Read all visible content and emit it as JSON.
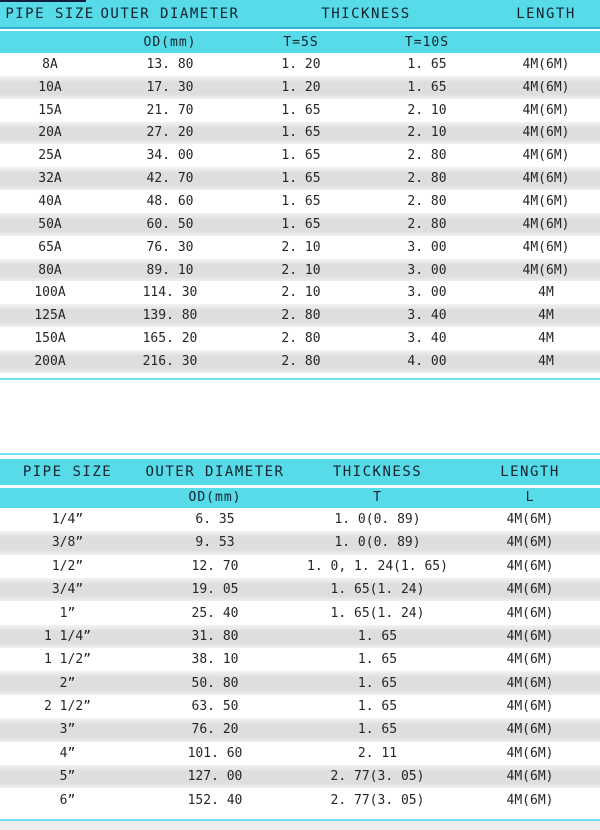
{
  "colors": {
    "header_cyan": "#57dbe9",
    "header_divider_teal": "#2cb6d4",
    "row_alt_gray": "#dedede",
    "thin_line_cyan": "#6fe0ef",
    "top_corner_navy": "#0d1c3f",
    "bottom_strip_gray": "#ededed",
    "text_dark": "#1d2a33"
  },
  "table1": {
    "header": {
      "pipe_size": "PIPE SIZE",
      "outer_diameter": "OUTER DIAMETER",
      "thickness": "THICKNESS",
      "length": "LENGTH"
    },
    "subheader": {
      "od": "OD(mm)",
      "t5s": "T=5S",
      "t10s": "T=10S"
    },
    "rows": [
      [
        "8A",
        "13. 80",
        "1. 20",
        "1. 65",
        "4M(6M)"
      ],
      [
        "10A",
        "17. 30",
        "1. 20",
        "1. 65",
        "4M(6M)"
      ],
      [
        "15A",
        "21. 70",
        "1. 65",
        "2. 10",
        "4M(6M)"
      ],
      [
        "20A",
        "27. 20",
        "1. 65",
        "2. 10",
        "4M(6M)"
      ],
      [
        "25A",
        "34. 00",
        "1. 65",
        "2. 80",
        "4M(6M)"
      ],
      [
        "32A",
        "42. 70",
        "1. 65",
        "2. 80",
        "4M(6M)"
      ],
      [
        "40A",
        "48. 60",
        "1. 65",
        "2. 80",
        "4M(6M)"
      ],
      [
        "50A",
        "60. 50",
        "1. 65",
        "2. 80",
        "4M(6M)"
      ],
      [
        "65A",
        "76. 30",
        "2. 10",
        "3. 00",
        "4M(6M)"
      ],
      [
        "80A",
        "89. 10",
        "2. 10",
        "3. 00",
        "4M(6M)"
      ],
      [
        "100A",
        "114. 30",
        "2. 10",
        "3. 00",
        "4M"
      ],
      [
        "125A",
        "139. 80",
        "2. 80",
        "3. 40",
        "4M"
      ],
      [
        "150A",
        "165. 20",
        "2. 80",
        "3. 40",
        "4M"
      ],
      [
        "200A",
        "216. 30",
        "2. 80",
        "4. 00",
        "4M"
      ]
    ]
  },
  "table2": {
    "header": {
      "pipe_size": "PIPE SIZE",
      "outer_diameter": "OUTER DIAMETER",
      "thickness": "THICKNESS",
      "length": "LENGTH"
    },
    "subheader": {
      "od": "OD(mm)",
      "t": "T",
      "l": "L"
    },
    "rows": [
      [
        "1/4”",
        "6. 35",
        "1. 0(0. 89)",
        "4M(6M)"
      ],
      [
        "3/8”",
        "9. 53",
        "1. 0(0. 89)",
        "4M(6M)"
      ],
      [
        "1/2”",
        "12. 70",
        "1. 0, 1. 24(1. 65)",
        "4M(6M)"
      ],
      [
        "3/4”",
        "19. 05",
        "1. 65(1. 24)",
        "4M(6M)"
      ],
      [
        "1”",
        "25. 40",
        "1. 65(1. 24)",
        "4M(6M)"
      ],
      [
        "1 1/4”",
        "31. 80",
        "1. 65",
        "4M(6M)"
      ],
      [
        "1 1/2”",
        "38. 10",
        "1. 65",
        "4M(6M)"
      ],
      [
        "2”",
        "50. 80",
        "1. 65",
        "4M(6M)"
      ],
      [
        "2 1/2”",
        "63. 50",
        "1. 65",
        "4M(6M)"
      ],
      [
        "3”",
        "76. 20",
        "1. 65",
        "4M(6M)"
      ],
      [
        "4”",
        "101. 60",
        "2. 11",
        "4M(6M)"
      ],
      [
        "5”",
        "127. 00",
        "2. 77(3. 05)",
        "4M(6M)"
      ],
      [
        "6”",
        "152. 40",
        "2. 77(3. 05)",
        "4M(6M)"
      ]
    ]
  }
}
